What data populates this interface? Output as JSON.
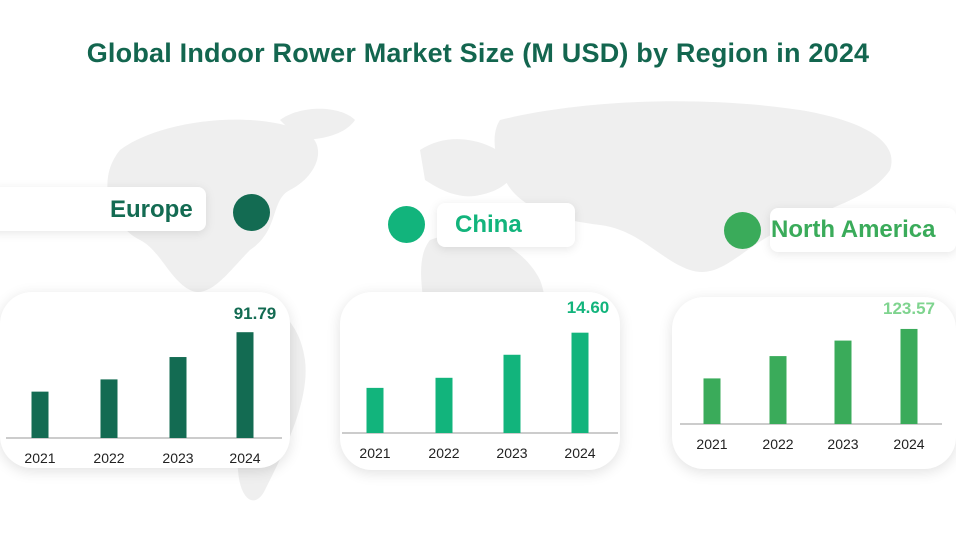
{
  "title": "Global Indoor Rower Market Size (M USD) by Region in 2024",
  "colors": {
    "title": "#13664f",
    "europe": "#136b52",
    "china": "#12b47c",
    "north_america": "#3aab5a",
    "north_america_label": "#7fd48f",
    "map": "#ececec"
  },
  "regions": [
    {
      "name": "Europe"
    },
    {
      "name": "China"
    },
    {
      "name": "North America"
    }
  ],
  "chart_data": [
    {
      "type": "bar",
      "region": "Europe",
      "categories": [
        "2021",
        "2022",
        "2023",
        "2024"
      ],
      "values": [
        50.4,
        63.7,
        88.0,
        115.0
      ],
      "value_label": "91.79",
      "color": "#136b52"
    },
    {
      "type": "bar",
      "region": "China",
      "categories": [
        "2021",
        "2022",
        "2023",
        "2024"
      ],
      "values": [
        47.0,
        57.5,
        81.5,
        104.5
      ],
      "value_label": "14.60",
      "color": "#12b47c"
    },
    {
      "type": "bar",
      "region": "North America",
      "categories": [
        "2021",
        "2022",
        "2023",
        "2024"
      ],
      "values": [
        47.0,
        70.0,
        86.0,
        98.0
      ],
      "value_label": "123.57",
      "color": "#3aab5a"
    }
  ]
}
